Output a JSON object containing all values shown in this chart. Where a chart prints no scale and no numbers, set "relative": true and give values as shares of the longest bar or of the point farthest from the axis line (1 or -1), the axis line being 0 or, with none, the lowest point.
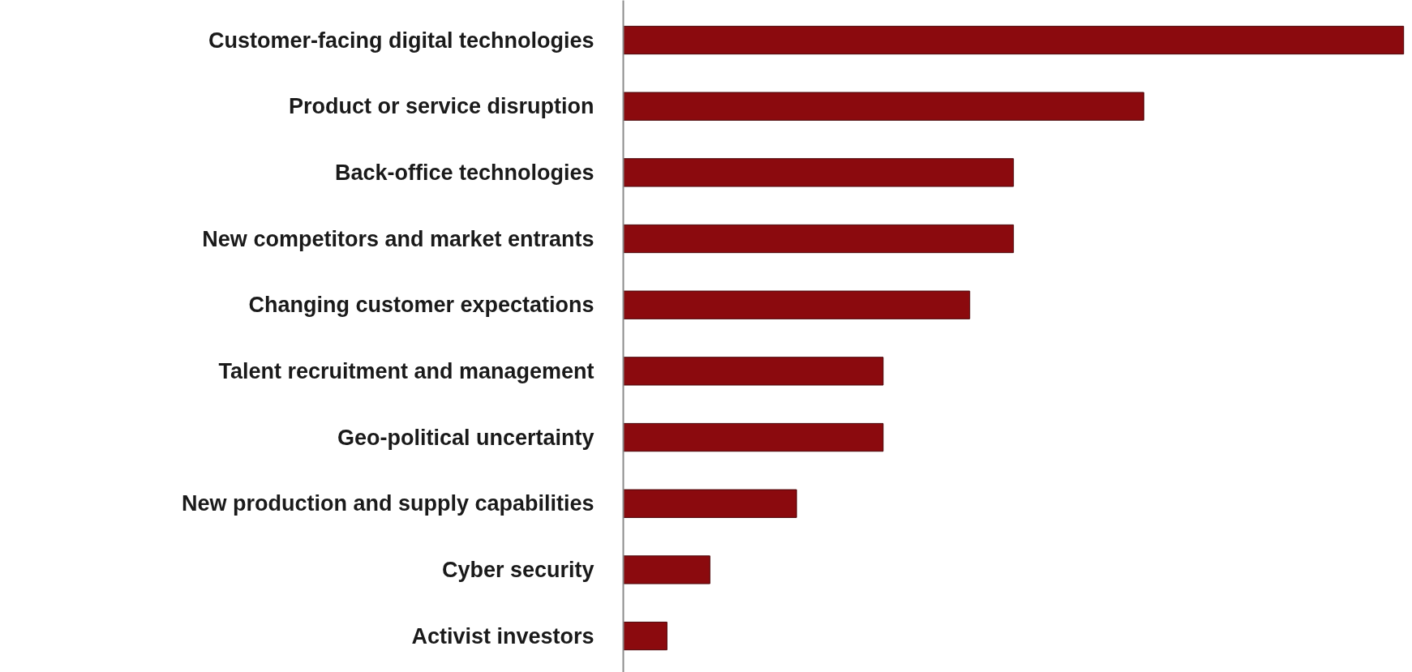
{
  "chart_data": {
    "type": "bar",
    "orientation": "horizontal",
    "relative": true,
    "categories": [
      "Customer-facing digital technologies",
      "Product or service disruption",
      "Back-office technologies",
      "New competitors and market entrants",
      "Changing customer expectations",
      "Talent recruitment and management",
      "Geo-political uncertainty",
      "New production and supply capabilities",
      "Cyber security",
      "Activist investors"
    ],
    "values": [
      1,
      0.667,
      0.5,
      0.5,
      0.444,
      0.333,
      0.333,
      0.222,
      0.111,
      0.056
    ],
    "color": "#8b0a0e"
  }
}
